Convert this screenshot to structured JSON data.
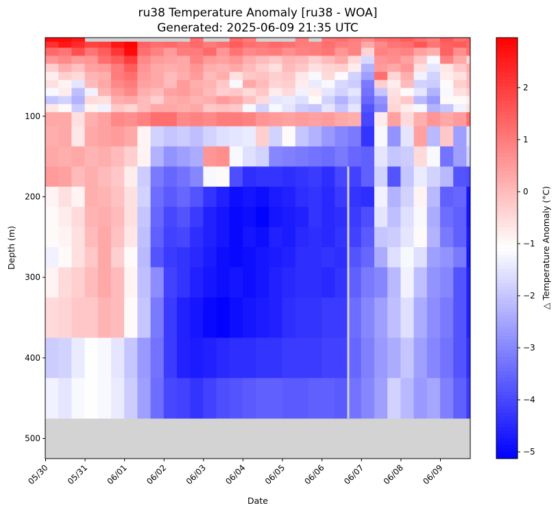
{
  "chart_data": {
    "type": "heatmap",
    "title": "ru38 Temperature Anomaly [ru38 - WOA]",
    "subtitle": "Generated: 2025-06-09 21:35 UTC",
    "xlabel": "Date",
    "ylabel": "Depth (m)",
    "colorbar_label": "△ Temperature Anomaly (°C)",
    "colormap": "bwr",
    "missing_color": "#d3d3d3",
    "vmin": -5.13,
    "vmax": 2.96,
    "colorbar_ticks": [
      "2",
      "1",
      "0",
      "−1",
      "−2",
      "−3",
      "−4",
      "−5"
    ],
    "colorbar_tick_values": [
      2,
      1,
      0,
      -1,
      -2,
      -3,
      -4,
      -5
    ],
    "xlim": [
      "2025-05-30 00:00",
      "2025-06-09 18:15"
    ],
    "ylim": [
      525,
      2.5
    ],
    "y_inverted": true,
    "x_ticks": [
      "05/30",
      "05/31",
      "06/01",
      "06/02",
      "06/03",
      "06/04",
      "06/05",
      "06/06",
      "06/07",
      "06/08",
      "06/09"
    ],
    "y_ticks": [
      "100",
      "200",
      "300",
      "400",
      "500"
    ],
    "y_tick_values": [
      100,
      200,
      300,
      400,
      500
    ],
    "time_start": "2025-05-30 00:00",
    "time_step_hours": 8,
    "depths": [
      5,
      10,
      20,
      30,
      40,
      50,
      60,
      70,
      80,
      90,
      100,
      125,
      150,
      175,
      200,
      225,
      250,
      275,
      300,
      350,
      400,
      450
    ],
    "missing_profiles": [
      {
        "time": "2025-06-06 16:10",
        "depth_from": 162.5,
        "depth_to": 475
      }
    ],
    "values": [
      [
        2.8,
        2.8,
        2.6,
        null,
        null,
        null,
        null,
        null,
        null,
        null,
        null,
        1.2,
        null,
        null,
        1.3,
        1.0,
        null,
        null,
        null,
        1.0,
        null,
        1.1,
        1.2,
        1.0,
        0.8,
        1.2,
        1.3,
        1.5,
        1.2,
        1.0,
        1.6,
        1.2,
        1.4
      ],
      [
        2.2,
        2.6,
        2.3,
        1.9,
        2.0,
        2.6,
        2.9,
        1.4,
        1.2,
        1.3,
        1.1,
        1.3,
        1.0,
        1.2,
        1.5,
        1.2,
        1.1,
        1.3,
        1.2,
        1.0,
        1.0,
        1.2,
        1.0,
        0.9,
        0.3,
        0.8,
        1.1,
        1.2,
        1.6,
        1.1,
        1.4,
        1.5,
        1.3
      ],
      [
        1.3,
        1.1,
        1.7,
        1.1,
        1.5,
        2.1,
        2.8,
        1.2,
        0.9,
        0.5,
        1.0,
        1.0,
        1.3,
        0.6,
        1.1,
        0.8,
        0.9,
        1.0,
        0.7,
        0.9,
        1.0,
        1.1,
        0.6,
        0.9,
        -0.4,
        0.9,
        0.8,
        0.9,
        0.4,
        0.2,
        1.4,
        0.7,
        1.2
      ],
      [
        0.6,
        0.8,
        0.5,
        0.6,
        1.2,
        1.5,
        2.0,
        0.8,
        0.5,
        0.4,
        0.3,
        0.9,
        0.5,
        0.4,
        0.6,
        0.2,
        0.0,
        -0.2,
        0.1,
        0.0,
        -0.3,
        0.0,
        0.3,
        -0.5,
        -1.7,
        0.6,
        0.7,
        0.4,
        -0.2,
        -1.2,
        0.9,
        0.3,
        -0.4
      ],
      [
        -0.3,
        0.2,
        -0.1,
        0.4,
        0.5,
        1.0,
        1.5,
        0.6,
        0.3,
        0.2,
        0.3,
        0.6,
        0.2,
        0.1,
        0.3,
        0.0,
        -0.3,
        -0.6,
        0.0,
        -0.2,
        -0.6,
        -0.4,
        -0.3,
        -0.8,
        -2.3,
        0.5,
        0.3,
        0.6,
        -0.6,
        -1.5,
        -0.7,
        -0.2,
        0.2
      ],
      [
        -0.8,
        -0.3,
        -0.5,
        0.1,
        0.2,
        1.0,
        1.2,
        0.5,
        0.3,
        0.0,
        0.2,
        0.5,
        0.0,
        0.2,
        -0.6,
        -0.2,
        -0.1,
        -0.3,
        -0.2,
        -0.7,
        -1.2,
        -0.5,
        -1.0,
        -1.8,
        -2.6,
        1.2,
        -0.4,
        0.2,
        -1.3,
        -1.8,
        -0.8,
        -0.6,
        0.0
      ],
      [
        -0.6,
        -0.9,
        -1.5,
        0.0,
        0.3,
        0.8,
        1.0,
        0.4,
        0.3,
        0.0,
        0.5,
        0.2,
        0.1,
        -0.2,
        -1.2,
        0.3,
        0.0,
        -0.4,
        -0.3,
        -0.8,
        -1.4,
        -1.2,
        -1.7,
        -1.9,
        -3.2,
        -0.3,
        -0.8,
        0.0,
        -1.8,
        -1.9,
        -1.0,
        -0.3,
        0.0
      ],
      [
        -1.2,
        -0.8,
        -2.1,
        -1.3,
        0.1,
        0.5,
        0.8,
        0.2,
        0.0,
        0.4,
        0.5,
        0.3,
        0.0,
        -0.3,
        -0.2,
        -0.5,
        -0.2,
        -0.8,
        -0.5,
        -1.3,
        -0.8,
        -1.5,
        -1.8,
        -1.5,
        -3.3,
        -2.0,
        -0.6,
        -1.0,
        -1.5,
        -2.3,
        -1.2,
        -0.6,
        -0.3
      ],
      [
        -2.0,
        -1.8,
        -2.3,
        -0.5,
        -0.6,
        0.2,
        0.3,
        0.0,
        -0.3,
        0.2,
        0.3,
        0.1,
        0.2,
        0.5,
        0.3,
        -0.1,
        -0.5,
        -1.5,
        -1.4,
        -1.6,
        -1.0,
        -1.8,
        -2.3,
        -1.8,
        -3.5,
        -2.8,
        -0.5,
        -0.2,
        -2.2,
        -2.7,
        -1.0,
        -1.0,
        -0.8
      ],
      [
        -0.7,
        -1.0,
        -1.9,
        -0.9,
        -1.3,
        -0.2,
        -0.4,
        0.0,
        0.3,
        0.3,
        0.2,
        0.3,
        -0.2,
        -0.1,
        -0.2,
        -1.2,
        -1.8,
        -1.2,
        -1.5,
        -1.9,
        -2.0,
        -1.5,
        -2.0,
        -1.5,
        -3.8,
        -3.0,
        -0.4,
        -0.8,
        -1.2,
        -2.3,
        -2.0,
        -1.3,
        -0.6
      ],
      [
        0.3,
        0.3,
        -0.6,
        0.2,
        0.4,
        0.8,
        0.7,
        0.9,
        1.2,
        1.2,
        0.8,
        0.9,
        0.8,
        1.0,
        1.0,
        0.9,
        0.6,
        0.5,
        0.4,
        0.5,
        0.4,
        0.5,
        0.3,
        0.2,
        -4.0,
        -0.8,
        0.4,
        -0.5,
        0.2,
        0.6,
        0.3,
        0.5,
        1.2
      ],
      [
        0.2,
        0.3,
        -0.7,
        0.3,
        0.4,
        0.5,
        0.3,
        -0.9,
        -1.8,
        -2.0,
        -1.9,
        -2.1,
        -1.8,
        -1.6,
        -1.5,
        -1.4,
        -0.3,
        -1.8,
        -1.0,
        -2.0,
        -2.3,
        -2.7,
        -3.0,
        -3.2,
        -4.3,
        -1.2,
        -2.8,
        -1.5,
        0.4,
        -2.2,
        -0.2,
        -2.6,
        -1.5
      ],
      [
        0.3,
        0.2,
        0.3,
        0.1,
        0.2,
        0.0,
        -0.3,
        -0.9,
        -2.3,
        -2.8,
        -2.6,
        -2.4,
        0.6,
        0.7,
        -1.2,
        -1.6,
        -1.8,
        -3.0,
        -3.1,
        -3.2,
        -3.3,
        -3.4,
        -3.2,
        -3.5,
        -3.6,
        -1.5,
        -2.0,
        -1.9,
        -0.5,
        -1.2,
        -3.3,
        -2.6,
        -1.8
      ],
      [
        0.5,
        0.4,
        0.0,
        0.2,
        0.0,
        -0.2,
        -0.8,
        -1.9,
        -3.2,
        -3.5,
        -3.3,
        -3.0,
        -1.2,
        -1.0,
        -3.9,
        -4.4,
        -4.3,
        -4.3,
        -4.4,
        -4.3,
        -4.2,
        -4.4,
        -4.0,
        -4.1,
        -3.6,
        -1.8,
        -3.8,
        -2.0,
        -1.4,
        -1.8,
        -2.2,
        -3.8,
        -3.9
      ],
      [
        -0.9,
        -0.6,
        -0.9,
        0.2,
        0.1,
        -0.1,
        -0.6,
        -1.8,
        -3.4,
        -3.7,
        -3.5,
        -3.8,
        -4.3,
        -4.6,
        -4.9,
        -4.8,
        -4.9,
        -4.7,
        -4.6,
        -4.4,
        -4.3,
        -4.5,
        -4.2,
        -4.3,
        -4.4,
        -1.3,
        -2.3,
        -1.8,
        -0.9,
        -2.2,
        -3.6,
        -3.5,
        -4.8
      ],
      [
        -1.0,
        -0.8,
        -0.5,
        0.1,
        0.2,
        0.0,
        -0.6,
        -2.0,
        -3.5,
        -4.0,
        -3.8,
        -4.2,
        -4.6,
        -4.8,
        -5.0,
        -4.9,
        -5.1,
        -4.8,
        -4.7,
        -4.6,
        -4.3,
        -4.5,
        -4.4,
        -4.2,
        -3.9,
        -1.5,
        -2.1,
        -1.6,
        -1.2,
        -2.4,
        -3.4,
        -3.6,
        -4.8
      ],
      [
        -1.0,
        -0.9,
        -0.6,
        0.0,
        0.3,
        -0.1,
        -0.7,
        -2.1,
        -3.6,
        -4.1,
        -4.0,
        -4.4,
        -4.6,
        -4.8,
        -5.0,
        -4.8,
        -4.9,
        -4.6,
        -4.7,
        -4.5,
        -4.4,
        -4.5,
        -4.3,
        -4.1,
        -3.7,
        -2.0,
        -1.9,
        -1.5,
        -1.0,
        -2.3,
        -3.2,
        -3.6,
        -4.7
      ],
      [
        -1.3,
        -1.0,
        -0.6,
        -0.2,
        0.3,
        -0.3,
        -1.0,
        -2.2,
        -3.8,
        -4.2,
        -4.3,
        -4.5,
        -4.7,
        -4.9,
        -5.0,
        -4.9,
        -4.8,
        -4.7,
        -4.6,
        -4.4,
        -4.4,
        -4.3,
        -4.4,
        -3.8,
        -3.5,
        -2.4,
        -1.6,
        -1.2,
        -1.6,
        -2.6,
        -2.8,
        -3.2,
        -4.8
      ],
      [
        -0.9,
        -0.5,
        -0.3,
        0.0,
        0.3,
        0.0,
        -0.9,
        -2.1,
        -2.9,
        -4.1,
        -4.3,
        -4.6,
        -4.8,
        -4.9,
        -4.8,
        -4.9,
        -4.8,
        -4.6,
        -4.5,
        -4.4,
        -4.4,
        -4.5,
        -4.3,
        -3.6,
        -3.2,
        -3.0,
        -2.2,
        -1.3,
        -2.1,
        -2.8,
        -3.0,
        -3.8,
        -4.6
      ],
      [
        -0.5,
        -0.4,
        -0.2,
        -0.2,
        0.1,
        0.0,
        -1.0,
        -2.0,
        -3.2,
        -4.2,
        -4.6,
        -4.8,
        -5.0,
        -5.1,
        -4.9,
        -4.8,
        -4.7,
        -4.6,
        -4.4,
        -4.3,
        -4.3,
        -4.2,
        -4.2,
        -3.4,
        -3.0,
        -2.6,
        -2.1,
        -1.6,
        -2.4,
        -2.9,
        -3.2,
        -3.8,
        -4.6
      ],
      [
        -1.9,
        -1.8,
        -1.4,
        -1.1,
        -1.2,
        -1.5,
        -2.0,
        -2.7,
        -3.3,
        -4.2,
        -4.6,
        -4.7,
        -4.6,
        -4.5,
        -4.4,
        -4.4,
        -4.3,
        -4.3,
        -4.2,
        -4.2,
        -4.2,
        -4.1,
        -4.1,
        -3.5,
        -3.1,
        -2.7,
        -2.4,
        -2.0,
        -2.6,
        -3.0,
        -3.3,
        -3.8,
        -4.4
      ],
      [
        -1.3,
        -1.5,
        -1.2,
        -1.1,
        -1.2,
        -1.4,
        -1.9,
        -2.6,
        -3.4,
        -4.0,
        -4.1,
        -4.3,
        -4.1,
        -3.9,
        -3.8,
        -3.7,
        -3.6,
        -3.6,
        -3.7,
        -3.7,
        -3.6,
        -3.6,
        -3.7,
        -3.3,
        -3.0,
        -2.6,
        -1.8,
        -2.2,
        -2.7,
        -2.5,
        -3.1,
        -3.6,
        -4.2
      ]
    ]
  }
}
